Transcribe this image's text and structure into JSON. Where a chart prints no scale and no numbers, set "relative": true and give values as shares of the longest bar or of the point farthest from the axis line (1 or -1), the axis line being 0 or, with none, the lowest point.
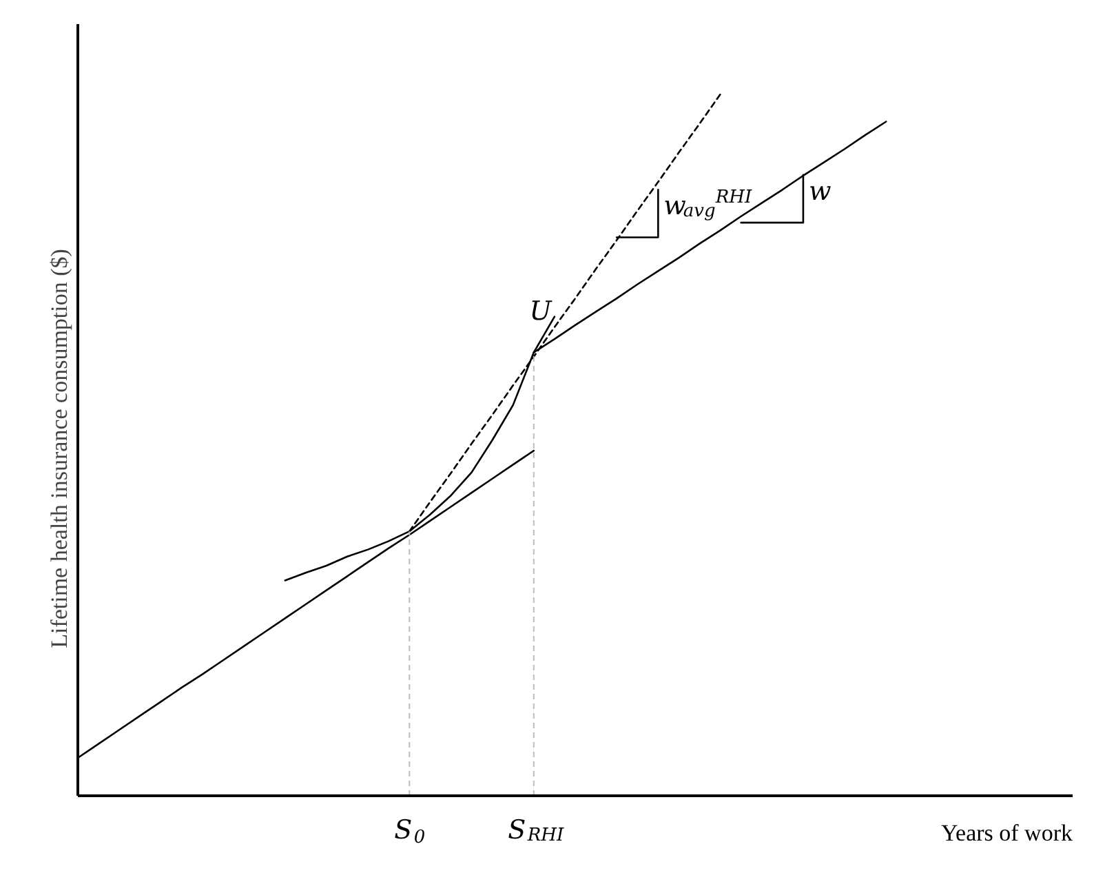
{
  "chart_data": {
    "type": "line",
    "relative": true,
    "xlabel": "Years of work",
    "ylabel": "Lifetime health insurance consumption ($)",
    "categories": [
      null,
      null,
      null,
      null,
      null,
      null,
      null,
      null,
      null,
      null,
      null,
      null,
      null,
      null,
      null,
      null,
      "S$_{0}$",
      null,
      null,
      null,
      null,
      null,
      "S$_{RHI}$",
      null,
      null,
      null,
      null,
      null,
      null,
      null,
      null,
      null,
      null,
      null,
      null,
      null,
      null,
      null,
      null,
      null,
      null,
      null,
      null,
      null,
      null,
      null,
      null,
      null,
      null
    ],
    "series": [
      {
        "color": "#000000",
        "line_style": "solid",
        "values": [
          0.054,
          0.074,
          0.094,
          0.114,
          0.134,
          0.154,
          0.173,
          0.193,
          0.213,
          0.233,
          0.253,
          0.273,
          0.293,
          0.313,
          0.333,
          0.353,
          0.372,
          0.392,
          0.412,
          0.432,
          0.452,
          0.472,
          0.492,
          null,
          null,
          null,
          null,
          null,
          null,
          null,
          null,
          null,
          null,
          null,
          null,
          null,
          null,
          null,
          null,
          null,
          null,
          null,
          null,
          null,
          null,
          null,
          null,
          null,
          null
        ]
      },
      {
        "color": "#000000",
        "line_style": "solid",
        "values": [
          null,
          null,
          null,
          null,
          null,
          null,
          null,
          null,
          null,
          null,
          null,
          null,
          null,
          null,
          null,
          null,
          null,
          null,
          null,
          null,
          null,
          null,
          0.632,
          0.651,
          0.671,
          0.69,
          0.709,
          0.729,
          0.748,
          0.767,
          0.787,
          0.806,
          0.826,
          0.845,
          0.864,
          0.884,
          0.903,
          0.922,
          0.942,
          0.961,
          null,
          null,
          null,
          null,
          null,
          null,
          null,
          null,
          null
        ]
      },
      {
        "color": "#000000",
        "line_style": "dashed",
        "values": [
          null,
          null,
          null,
          null,
          null,
          null,
          null,
          null,
          null,
          null,
          null,
          null,
          null,
          null,
          null,
          null,
          0.377,
          0.419,
          0.46,
          0.502,
          0.543,
          0.585,
          0.626,
          0.668,
          0.709,
          0.751,
          0.792,
          0.834,
          0.875,
          0.917,
          0.958,
          1.0,
          null,
          null,
          null,
          null,
          null,
          null,
          null,
          null,
          null,
          null,
          null,
          null,
          null,
          null,
          null,
          null,
          null
        ]
      },
      {
        "name": "U",
        "color": "#000000",
        "line_style": "solid",
        "values": [
          null,
          null,
          null,
          null,
          null,
          null,
          null,
          null,
          null,
          null,
          0.307,
          0.318,
          0.328,
          0.341,
          0.351,
          0.363,
          0.377,
          0.401,
          0.428,
          0.461,
          0.507,
          0.557,
          0.632,
          0.683,
          null,
          null,
          null,
          null,
          null,
          null,
          null,
          null,
          null,
          null,
          null,
          null,
          null,
          null,
          null,
          null,
          null,
          null,
          null,
          null,
          null,
          null,
          null,
          null,
          null
        ]
      },
      {
        "name": "w$_{avg}$$^{RHI}$",
        "type": "step",
        "color": "#000000",
        "line_style": "solid",
        "values": [
          null,
          null,
          null,
          null,
          null,
          null,
          null,
          null,
          null,
          null,
          null,
          null,
          null,
          null,
          null,
          null,
          null,
          null,
          null,
          null,
          null,
          null,
          null,
          null,
          null,
          null,
          0.796,
          0.796,
          0.864,
          null,
          null,
          null,
          null,
          null,
          null,
          null,
          null,
          null,
          null,
          null,
          null,
          null,
          null,
          null,
          null,
          null,
          null,
          null,
          null
        ]
      },
      {
        "name": "w",
        "type": "step",
        "color": "#000000",
        "line_style": "solid",
        "values": [
          null,
          null,
          null,
          null,
          null,
          null,
          null,
          null,
          null,
          null,
          null,
          null,
          null,
          null,
          null,
          null,
          null,
          null,
          null,
          null,
          null,
          null,
          null,
          null,
          null,
          null,
          null,
          null,
          null,
          null,
          null,
          null,
          0.817,
          0.817,
          0.817,
          0.885,
          null,
          null,
          null,
          null,
          null,
          null,
          null,
          null,
          null,
          null,
          null,
          null,
          null
        ]
      }
    ],
    "ref_lines": [
      {
        "axis": "x",
        "value": "S$_{0}$",
        "color": "#bbbbbb",
        "line_style": "dashed"
      },
      {
        "axis": "x",
        "value": "S$_{RHI}$",
        "color": "#bbbbbb",
        "line_style": "dashed"
      }
    ]
  }
}
